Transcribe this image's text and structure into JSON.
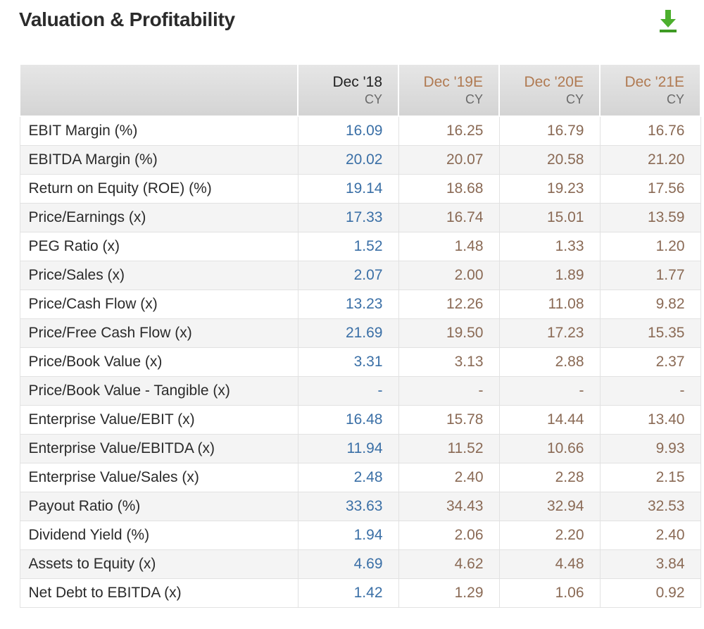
{
  "header": {
    "title": "Valuation & Profitability",
    "download_icon": "download-arrow-icon"
  },
  "colors": {
    "actual_header": "#222222",
    "estimate_header": "#b07a52",
    "actual_values": "#3a6fa6",
    "estimate_values": "#8a6a55",
    "download_icon": "#4caf2d"
  },
  "table": {
    "columns": [
      {
        "period": "Dec '18",
        "basis": "CY",
        "type": "actual"
      },
      {
        "period": "Dec '19E",
        "basis": "CY",
        "type": "est"
      },
      {
        "period": "Dec '20E",
        "basis": "CY",
        "type": "est"
      },
      {
        "period": "Dec '21E",
        "basis": "CY",
        "type": "est"
      }
    ],
    "rows": [
      {
        "label": "EBIT Margin (%)",
        "values": [
          "16.09",
          "16.25",
          "16.79",
          "16.76"
        ]
      },
      {
        "label": "EBITDA Margin (%)",
        "values": [
          "20.02",
          "20.07",
          "20.58",
          "21.20"
        ]
      },
      {
        "label": "Return on Equity (ROE) (%)",
        "values": [
          "19.14",
          "18.68",
          "19.23",
          "17.56"
        ]
      },
      {
        "label": "Price/Earnings (x)",
        "values": [
          "17.33",
          "16.74",
          "15.01",
          "13.59"
        ]
      },
      {
        "label": "PEG Ratio (x)",
        "values": [
          "1.52",
          "1.48",
          "1.33",
          "1.20"
        ]
      },
      {
        "label": "Price/Sales (x)",
        "values": [
          "2.07",
          "2.00",
          "1.89",
          "1.77"
        ]
      },
      {
        "label": "Price/Cash Flow (x)",
        "values": [
          "13.23",
          "12.26",
          "11.08",
          "9.82"
        ]
      },
      {
        "label": "Price/Free Cash Flow (x)",
        "values": [
          "21.69",
          "19.50",
          "17.23",
          "15.35"
        ]
      },
      {
        "label": "Price/Book Value (x)",
        "values": [
          "3.31",
          "3.13",
          "2.88",
          "2.37"
        ]
      },
      {
        "label": "Price/Book Value - Tangible (x)",
        "values": [
          "-",
          "-",
          "-",
          "-"
        ]
      },
      {
        "label": "Enterprise Value/EBIT (x)",
        "values": [
          "16.48",
          "15.78",
          "14.44",
          "13.40"
        ]
      },
      {
        "label": "Enterprise Value/EBITDA (x)",
        "values": [
          "11.94",
          "11.52",
          "10.66",
          "9.93"
        ]
      },
      {
        "label": "Enterprise Value/Sales (x)",
        "values": [
          "2.48",
          "2.40",
          "2.28",
          "2.15"
        ]
      },
      {
        "label": "Payout Ratio (%)",
        "values": [
          "33.63",
          "34.43",
          "32.94",
          "32.53"
        ]
      },
      {
        "label": "Dividend Yield (%)",
        "values": [
          "1.94",
          "2.06",
          "2.20",
          "2.40"
        ]
      },
      {
        "label": "Assets to Equity (x)",
        "values": [
          "4.69",
          "4.62",
          "4.48",
          "3.84"
        ]
      },
      {
        "label": "Net Debt to EBITDA (x)",
        "values": [
          "1.42",
          "1.29",
          "1.06",
          "0.92"
        ]
      }
    ]
  }
}
